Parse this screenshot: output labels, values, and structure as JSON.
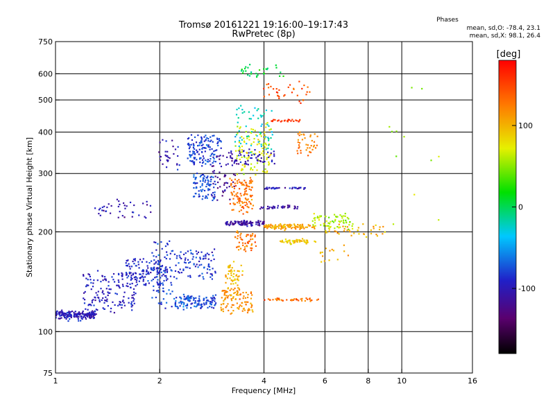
{
  "chart_data": {
    "type": "scatter",
    "title": "Tromsø 20161221 19:16:00–19:17:43",
    "subtitle": "RwPretec (8p)",
    "xlabel": "Frequency [MHz]",
    "ylabel": "Stationary phase Virtual Height [km]",
    "xscale": "log",
    "yscale": "log",
    "xlim": [
      1,
      16
    ],
    "ylim": [
      75,
      750
    ],
    "x_ticks": [
      "1",
      "2",
      "4",
      "6",
      "8",
      "10",
      "16"
    ],
    "x_tick_values": [
      1,
      2,
      4,
      6,
      8,
      10,
      16
    ],
    "y_ticks": [
      "75",
      "100",
      "200",
      "300",
      "400",
      "500",
      "600",
      "750"
    ],
    "y_tick_values": [
      75,
      100,
      200,
      300,
      400,
      500,
      600,
      750
    ],
    "grid_x": [
      2,
      4,
      6,
      8,
      10
    ],
    "grid_y": [
      100,
      200,
      300,
      400,
      500,
      600
    ],
    "grid": true,
    "phases_box": {
      "title": "Phases",
      "line1": "mean, sd,O: -78.4, 23.1",
      "line2": "mean, sd,X:  98.1, 26.4"
    },
    "colorbar": {
      "label": "[deg]",
      "range": [
        -180,
        180
      ],
      "ticks": [
        "100",
        "0",
        "-100"
      ],
      "tick_values": [
        100,
        0,
        -100
      ],
      "colormap": "rainbow"
    },
    "series": [
      {
        "x": [
          1.0,
          1.3
        ],
        "y": [
          112,
          113
        ],
        "phase": -100,
        "scatter": 0.06,
        "n": 170
      },
      {
        "x": [
          1.2,
          1.7
        ],
        "y": [
          117,
          150
        ],
        "phase": -95,
        "scatter": 0.05,
        "n": 150
      },
      {
        "x": [
          1.6,
          2.1
        ],
        "y": [
          138,
          165
        ],
        "phase": -90,
        "scatter": 0.06,
        "n": 140
      },
      {
        "x": [
          1.9,
          2.2
        ],
        "y": [
          120,
          190
        ],
        "phase": -80,
        "scatter": 0.07,
        "n": 70
      },
      {
        "x": [
          2.2,
          2.9
        ],
        "y": [
          118,
          128
        ],
        "phase": -75,
        "scatter": 0.04,
        "n": 120
      },
      {
        "x": [
          2.2,
          2.9
        ],
        "y": [
          145,
          175
        ],
        "phase": -85,
        "scatter": 0.05,
        "n": 90
      },
      {
        "x": [
          2.4,
          3.0
        ],
        "y": [
          320,
          390
        ],
        "phase": -80,
        "scatter": 0.05,
        "n": 140
      },
      {
        "x": [
          2.5,
          2.9
        ],
        "y": [
          250,
          300
        ],
        "phase": -75,
        "scatter": 0.03,
        "n": 80
      },
      {
        "x": [
          2.0,
          2.3
        ],
        "y": [
          310,
          380
        ],
        "phase": -100,
        "scatter": 0.06,
        "n": 30
      },
      {
        "x": [
          1.3,
          1.9
        ],
        "y": [
          220,
          250
        ],
        "phase": -105,
        "scatter": 0.05,
        "n": 40
      },
      {
        "x": [
          2.8,
          3.3
        ],
        "y": [
          250,
          340
        ],
        "phase": -120,
        "scatter": 0.05,
        "n": 50
      },
      {
        "x": [
          3.1,
          4.0
        ],
        "y": [
          210,
          215
        ],
        "phase": -110,
        "scatter": 0.02,
        "n": 100
      },
      {
        "x": [
          3.0,
          3.7
        ],
        "y": [
          115,
          135
        ],
        "phase": 115,
        "scatter": 0.04,
        "n": 110
      },
      {
        "x": [
          3.1,
          3.5
        ],
        "y": [
          140,
          160
        ],
        "phase": 95,
        "scatter": 0.04,
        "n": 50
      },
      {
        "x": [
          3.2,
          3.7
        ],
        "y": [
          230,
          290
        ],
        "phase": 130,
        "scatter": 0.05,
        "n": 110
      },
      {
        "x": [
          3.3,
          3.8
        ],
        "y": [
          175,
          200
        ],
        "phase": 130,
        "scatter": 0.04,
        "n": 50
      },
      {
        "x": [
          3.3,
          4.2
        ],
        "y": [
          300,
          420
        ],
        "phase": 70,
        "scatter": 0.06,
        "n": 110
      },
      {
        "x": [
          3.1,
          4.3
        ],
        "y": [
          320,
          350
        ],
        "phase": -100,
        "scatter": 0.05,
        "n": 60
      },
      {
        "x": [
          3.3,
          4.3
        ],
        "y": [
          350,
          480
        ],
        "phase": -25,
        "scatter": 0.08,
        "n": 60
      },
      {
        "x": [
          3.4,
          4.6
        ],
        "y": [
          590,
          630
        ],
        "phase": 5,
        "scatter": 0.05,
        "n": 30
      },
      {
        "x": [
          4.0,
          5.6
        ],
        "y": [
          205,
          210
        ],
        "phase": 105,
        "scatter": 0.02,
        "n": 110
      },
      {
        "x": [
          4.0,
          5.3
        ],
        "y": [
          270,
          272
        ],
        "phase": -100,
        "scatter": 0.01,
        "n": 35
      },
      {
        "x": [
          3.9,
          5.0
        ],
        "y": [
          235,
          240
        ],
        "phase": -110,
        "scatter": 0.02,
        "n": 35
      },
      {
        "x": [
          4.4,
          5.7
        ],
        "y": [
          185,
          190
        ],
        "phase": 90,
        "scatter": 0.02,
        "n": 50
      },
      {
        "x": [
          4.0,
          5.8
        ],
        "y": [
          124,
          126
        ],
        "phase": 130,
        "scatter": 0.01,
        "n": 40
      },
      {
        "x": [
          4.2,
          5.1
        ],
        "y": [
          430,
          436
        ],
        "phase": 160,
        "scatter": 0.01,
        "n": 25
      },
      {
        "x": [
          4.0,
          5.6
        ],
        "y": [
          500,
          560
        ],
        "phase": 145,
        "scatter": 0.06,
        "n": 35
      },
      {
        "x": [
          5.0,
          5.7
        ],
        "y": [
          340,
          400
        ],
        "phase": 125,
        "scatter": 0.05,
        "n": 40
      },
      {
        "x": [
          5.5,
          7.2
        ],
        "y": [
          205,
          225
        ],
        "phase": 60,
        "scatter": 0.04,
        "n": 70
      },
      {
        "x": [
          6.0,
          9.0
        ],
        "y": [
          195,
          210
        ],
        "phase": 100,
        "scatter": 0.04,
        "n": 40
      },
      {
        "x": [
          5.8,
          7.0
        ],
        "y": [
          160,
          180
        ],
        "phase": 105,
        "scatter": 0.04,
        "n": 15
      },
      {
        "x": [
          9.0,
          13.0
        ],
        "y": [
          170,
          570
        ],
        "phase": 60,
        "scatter": 0.15,
        "n": 12
      }
    ]
  }
}
